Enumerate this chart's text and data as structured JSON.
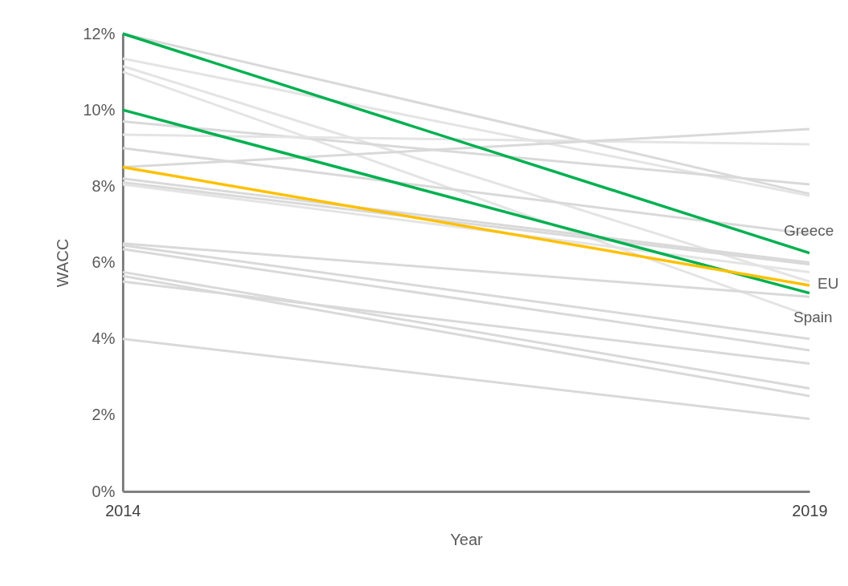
{
  "chart_data": {
    "type": "line",
    "xlabel": "Year",
    "ylabel": "WACC",
    "categories": [
      "2014",
      "2019"
    ],
    "ylim": [
      0,
      12
    ],
    "yticks": [
      {
        "value": 0,
        "label": "0%"
      },
      {
        "value": 2,
        "label": "2%"
      },
      {
        "value": 4,
        "label": "4%"
      },
      {
        "value": 6,
        "label": "6%"
      },
      {
        "value": 8,
        "label": "8%"
      },
      {
        "value": 10,
        "label": "10%"
      },
      {
        "value": 12,
        "label": "12%"
      }
    ],
    "marker": "none",
    "line_style": "solid",
    "series": [
      {
        "color": "#d9d9d9",
        "values": [
          12.0,
          7.8
        ]
      },
      {
        "color": "#e4e4e4",
        "values": [
          11.35,
          7.75
        ]
      },
      {
        "color": "#e4e4e4",
        "values": [
          11.15,
          5.5
        ]
      },
      {
        "color": "#e4e4e4",
        "values": [
          11.0,
          4.6
        ]
      },
      {
        "color": "#d9d9d9",
        "values": [
          9.7,
          8.05
        ]
      },
      {
        "color": "#e4e4e4",
        "values": [
          9.35,
          9.1
        ]
      },
      {
        "color": "#d9d9d9",
        "values": [
          9.0,
          6.75
        ]
      },
      {
        "color": "#d9d9d9",
        "values": [
          8.5,
          9.5
        ]
      },
      {
        "color": "#d9d9d9",
        "values": [
          8.2,
          6.0
        ]
      },
      {
        "color": "#d9d9d9",
        "values": [
          8.1,
          5.95
        ]
      },
      {
        "color": "#e4e4e4",
        "values": [
          8.05,
          5.75
        ]
      },
      {
        "color": "#d9d9d9",
        "values": [
          6.5,
          5.1
        ]
      },
      {
        "color": "#d9d9d9",
        "values": [
          6.45,
          4.0
        ]
      },
      {
        "color": "#d9d9d9",
        "values": [
          6.35,
          3.7
        ]
      },
      {
        "color": "#d9d9d9",
        "values": [
          5.75,
          2.7
        ]
      },
      {
        "color": "#d9d9d9",
        "values": [
          5.65,
          2.5
        ]
      },
      {
        "color": "#d9d9d9",
        "values": [
          5.5,
          3.35
        ]
      },
      {
        "color": "#d9d9d9",
        "values": [
          4.0,
          1.9
        ]
      },
      {
        "name": "Spain",
        "color": "#00b050",
        "values": [
          10.0,
          5.2
        ]
      },
      {
        "name": "Greece",
        "color": "#00b050",
        "values": [
          12.0,
          6.25
        ]
      },
      {
        "name": "EU",
        "color": "#ffc000",
        "values": [
          8.5,
          5.4
        ]
      }
    ]
  }
}
